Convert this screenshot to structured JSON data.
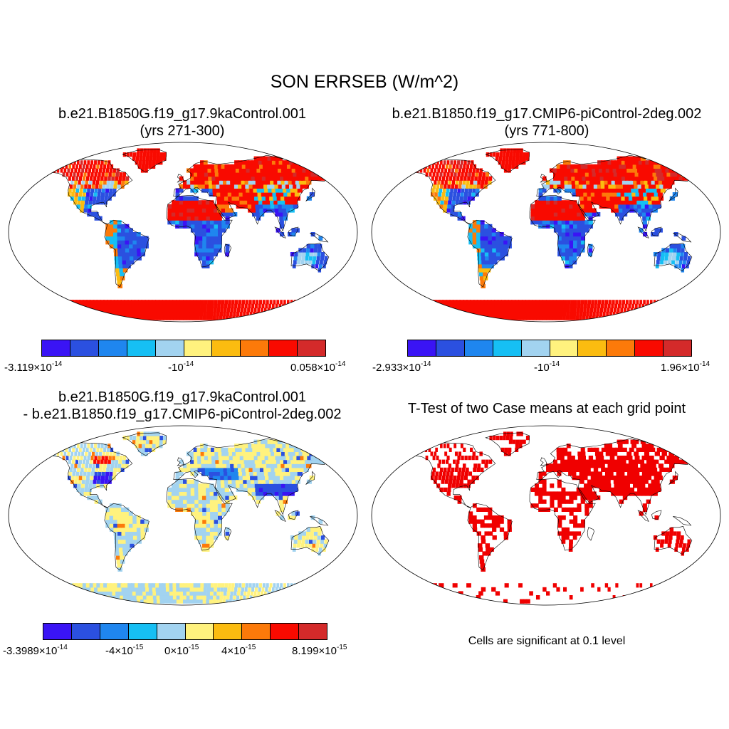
{
  "title": "SON ERRSEB (W/m^2)",
  "panels": {
    "a": {
      "line1": "b.e21.B1850G.f19_g17.9kaControl.001",
      "line2": "(yrs 271-300)"
    },
    "b": {
      "line1": "b.e21.B1850.f19_g17.CMIP6-piControl-2deg.002",
      "line2": "(yrs 771-800)"
    },
    "c": {
      "line1": "b.e21.B1850G.f19_g17.9kaControl.001",
      "line2": "- b.e21.B1850.f19_g17.CMIP6-piControl-2deg.002"
    },
    "d": {
      "line1": "T-Test of two Case means at each grid point"
    }
  },
  "colorbar_colors": [
    "#3a14f5",
    "#2b50e0",
    "#1f86ef",
    "#16bff4",
    "#a2d3f0",
    "#fff27e",
    "#fbbc10",
    "#fc7a0a",
    "#f90a00",
    "#d42a2a"
  ],
  "cbar_a": {
    "min_mant": "-3.119×10",
    "min_exp": "-14",
    "mid_mant": "-10",
    "mid_exp": "-14",
    "max_mant": "0.058×10",
    "max_exp": "-14"
  },
  "cbar_b": {
    "min_mant": "-2.933×10",
    "min_exp": "-14",
    "mid_mant": "-10",
    "mid_exp": "-14",
    "max_mant": "1.96×10",
    "max_exp": "-14"
  },
  "cbar_c": {
    "l1_mant": "-3.3989×10",
    "l1_exp": "-14",
    "l2_mant": "-4×10",
    "l2_exp": "-15",
    "l3_mant": "0×10",
    "l3_exp": "-15",
    "l4_mant": "4×10",
    "l4_exp": "-15",
    "l5_mant": "8.199×10",
    "l5_exp": "-15"
  },
  "significance_note": "Cells are significant at 0.1 level",
  "map_colors": {
    "land_red": "#f90a00",
    "land_blue": "#2b50e0",
    "ocean": "#ffffff",
    "sig": "#f00000"
  }
}
